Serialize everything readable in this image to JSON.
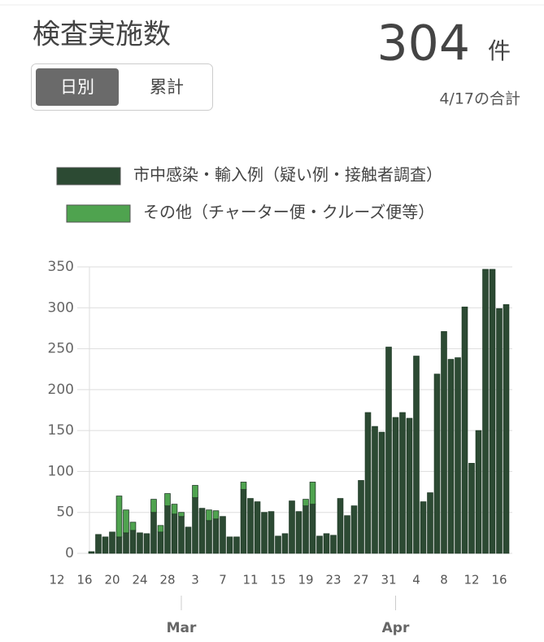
{
  "header": {
    "title": "検査実施数",
    "total": "304",
    "unit": "件",
    "note": "4/17の合計"
  },
  "tabs": [
    "日別",
    "累計"
  ],
  "chart_data": {
    "type": "bar",
    "stacked": true,
    "categories": [
      "12",
      null,
      null,
      null,
      "16",
      null,
      null,
      null,
      "20",
      null,
      null,
      null,
      "24",
      null,
      null,
      null,
      "28",
      null,
      null,
      null,
      "3",
      null,
      null,
      null,
      "7",
      null,
      null,
      null,
      "11",
      null,
      null,
      null,
      "15",
      null,
      null,
      null,
      "19",
      null,
      null,
      null,
      "23",
      null,
      null,
      null,
      "27",
      null,
      null,
      null,
      "31",
      null,
      null,
      null,
      "4",
      null,
      null,
      null,
      "8",
      null,
      null,
      null,
      "12",
      null,
      null,
      null,
      "16",
      null
    ],
    "months": [
      "Mar",
      "Apr"
    ],
    "series": [
      {
        "name": "市中感染・輸入例（疑い例・接触者調査）",
        "color": "#2c4a33",
        "values": [
          null,
          null,
          null,
          null,
          null,
          2,
          23,
          20,
          26,
          20,
          25,
          28,
          25,
          24,
          50,
          26,
          58,
          48,
          45,
          32,
          68,
          55,
          40,
          42,
          45,
          20,
          20,
          78,
          67,
          63,
          50,
          51,
          21,
          24,
          64,
          51,
          58,
          60,
          21,
          24,
          22,
          67,
          46,
          58,
          89,
          172,
          155,
          148,
          252,
          166,
          172,
          165,
          241,
          63,
          74,
          219,
          271,
          237,
          239,
          301,
          110,
          150,
          347,
          347,
          299,
          304
        ]
      },
      {
        "name": "その他（チャーター便・クルーズ便等）",
        "color": "#4fa34f",
        "values": [
          null,
          null,
          null,
          null,
          null,
          0,
          0,
          0,
          0,
          50,
          28,
          10,
          0,
          0,
          16,
          8,
          15,
          12,
          5,
          0,
          15,
          0,
          13,
          10,
          0,
          0,
          0,
          9,
          0,
          0,
          0,
          0,
          0,
          0,
          0,
          0,
          8,
          27,
          0,
          0,
          0,
          0,
          0,
          0,
          0,
          0,
          0,
          0,
          0,
          0,
          0,
          0,
          0,
          0,
          0,
          0,
          0,
          0,
          0,
          0,
          0,
          0,
          0,
          0,
          0,
          0
        ]
      }
    ],
    "ylim": [
      0,
      350
    ],
    "yticks": [
      0,
      50,
      100,
      150,
      200,
      250,
      300,
      350
    ],
    "grid": true
  }
}
